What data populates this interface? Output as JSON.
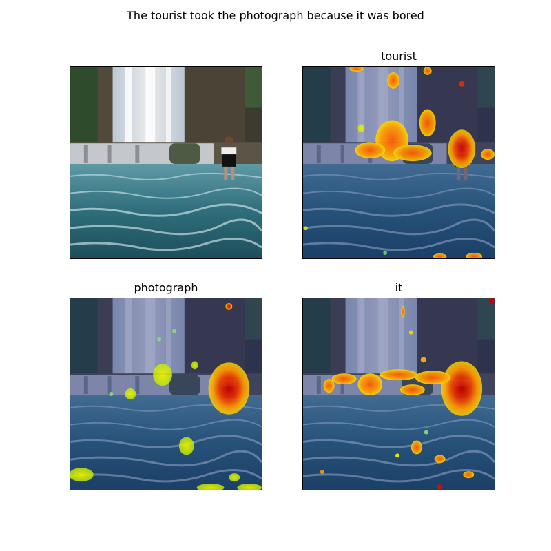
{
  "figure": {
    "suptitle": "The tourist took the photograph because it was bored",
    "panels": [
      {
        "title": "",
        "image": "waterfall-photo-original"
      },
      {
        "title": "tourist",
        "image": "waterfall-photo-attention-overlay"
      },
      {
        "title": "photograph",
        "image": "waterfall-photo-attention-overlay"
      },
      {
        "title": "it",
        "image": "waterfall-photo-attention-overlay"
      }
    ]
  }
}
